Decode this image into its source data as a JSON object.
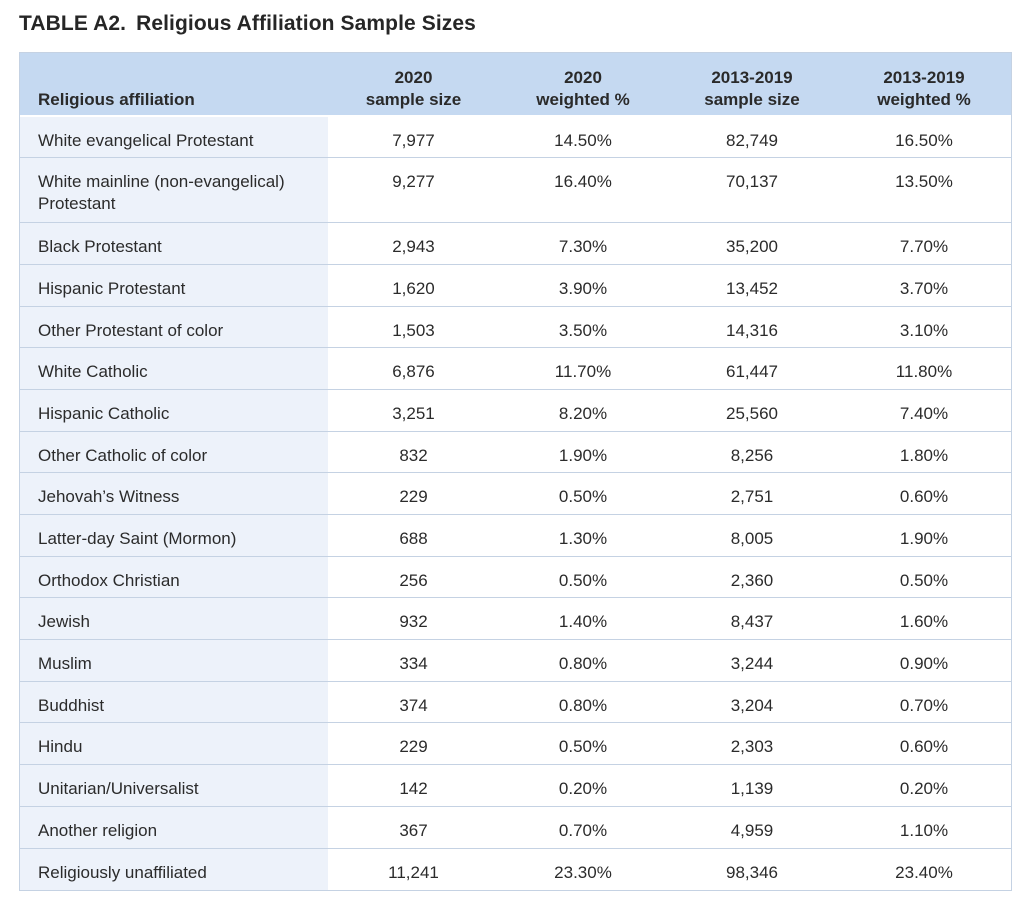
{
  "title": {
    "label": "TABLE A2.",
    "text": "Religious Affiliation Sample Sizes"
  },
  "table": {
    "headers": [
      [
        "Religious affiliation"
      ],
      [
        "2020",
        "sample size"
      ],
      [
        "2020",
        "weighted %"
      ],
      [
        "2013-2019",
        "sample size"
      ],
      [
        "2013-2019",
        "weighted %"
      ]
    ],
    "rows": [
      [
        "White evangelical Protestant",
        "7,977",
        "14.50%",
        "82,749",
        "16.50%"
      ],
      [
        "White mainline (non-evangelical) Protestant",
        "9,277",
        "16.40%",
        "70,137",
        "13.50%"
      ],
      [
        "Black Protestant",
        "2,943",
        "7.30%",
        "35,200",
        "7.70%"
      ],
      [
        "Hispanic Protestant",
        "1,620",
        "3.90%",
        "13,452",
        "3.70%"
      ],
      [
        "Other Protestant of color",
        "1,503",
        "3.50%",
        "14,316",
        "3.10%"
      ],
      [
        "White Catholic",
        "6,876",
        "11.70%",
        "61,447",
        "11.80%"
      ],
      [
        "Hispanic Catholic",
        "3,251",
        "8.20%",
        "25,560",
        "7.40%"
      ],
      [
        "Other Catholic of color",
        "832",
        "1.90%",
        "8,256",
        "1.80%"
      ],
      [
        "Jehovah’s Witness",
        "229",
        "0.50%",
        "2,751",
        "0.60%"
      ],
      [
        "Latter-day Saint (Mormon)",
        "688",
        "1.30%",
        "8,005",
        "1.90%"
      ],
      [
        "Orthodox Christian",
        "256",
        "0.50%",
        "2,360",
        "0.50%"
      ],
      [
        "Jewish",
        "932",
        "1.40%",
        "8,437",
        "1.60%"
      ],
      [
        "Muslim",
        "334",
        "0.80%",
        "3,244",
        "0.90%"
      ],
      [
        "Buddhist",
        "374",
        "0.80%",
        "3,204",
        "0.70%"
      ],
      [
        "Hindu",
        "229",
        "0.50%",
        "2,303",
        "0.60%"
      ],
      [
        "Unitarian/Universalist",
        "142",
        "0.20%",
        "1,139",
        "0.20%"
      ],
      [
        "Another religion",
        "367",
        "0.70%",
        "4,959",
        "1.10%"
      ],
      [
        "Religiously unaffiliated",
        "11,241",
        "23.30%",
        "98,346",
        "23.40%"
      ]
    ]
  }
}
